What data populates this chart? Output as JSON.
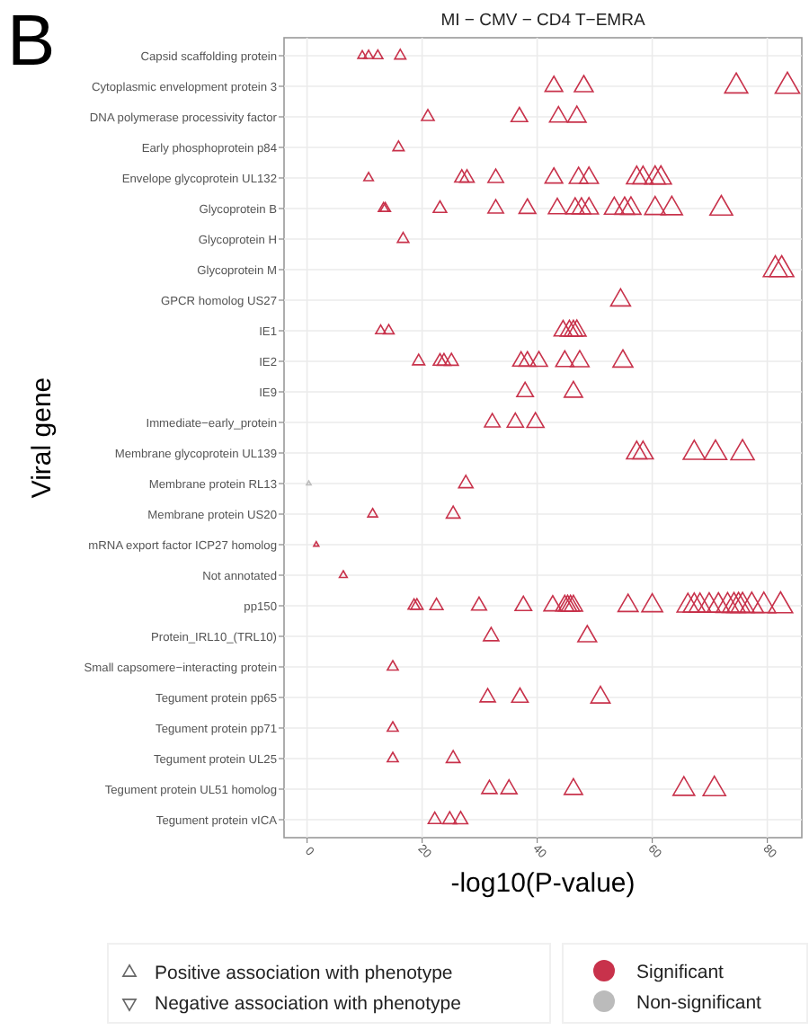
{
  "chart_data": {
    "type": "scatter",
    "orientation": "horizontal",
    "title": "MI − CMV − CD4 T−EMRA",
    "xlabel": "-log10(P-value)",
    "ylabel": "Viral gene",
    "categories": [
      "Capsid scaffolding protein",
      "Cytoplasmic envelopment protein 3",
      "DNA polymerase processivity factor",
      "Early phosphoprotein p84",
      "Envelope glycoprotein UL132",
      "Glycoprotein B",
      "Glycoprotein H",
      "Glycoprotein M",
      "GPCR homolog US27",
      "IE1",
      "IE2",
      "IE9",
      "Immediate−early_protein",
      "Membrane glycoprotein UL139",
      "Membrane protein RL13",
      "Membrane protein US20",
      "mRNA export factor ICP27 homolog",
      "Not annotated",
      "pp150",
      "Protein_IRL10_(TRL10)",
      "Small capsomere−interacting protein",
      "Tegument protein pp65",
      "Tegument protein pp71",
      "Tegument protein UL25",
      "Tegument protein UL51 homolog",
      "Tegument protein vICA"
    ],
    "xlim": [
      -4,
      86
    ],
    "xticks": [
      0,
      20,
      40,
      60,
      80
    ],
    "grid": true,
    "marker": "triangle",
    "legend": "bottom",
    "series": [
      {
        "name": "Significant",
        "color": "#c8324b",
        "x": [
          "Capsid scaffolding protein",
          "Capsid scaffolding protein",
          "Capsid scaffolding protein",
          "Capsid scaffolding protein",
          "Cytoplasmic envelopment protein 3",
          "Cytoplasmic envelopment protein 3",
          "Cytoplasmic envelopment protein 3",
          "Cytoplasmic envelopment protein 3",
          "DNA polymerase processivity factor",
          "DNA polymerase processivity factor",
          "DNA polymerase processivity factor",
          "DNA polymerase processivity factor",
          "Early phosphoprotein p84",
          "Envelope glycoprotein UL132",
          "Envelope glycoprotein UL132",
          "Envelope glycoprotein UL132",
          "Envelope glycoprotein UL132",
          "Envelope glycoprotein UL132",
          "Envelope glycoprotein UL132",
          "Envelope glycoprotein UL132",
          "Envelope glycoprotein UL132",
          "Envelope glycoprotein UL132",
          "Envelope glycoprotein UL132",
          "Envelope glycoprotein UL132",
          "Glycoprotein B",
          "Glycoprotein B",
          "Glycoprotein B",
          "Glycoprotein B",
          "Glycoprotein B",
          "Glycoprotein B",
          "Glycoprotein B",
          "Glycoprotein B",
          "Glycoprotein B",
          "Glycoprotein B",
          "Glycoprotein B",
          "Glycoprotein B",
          "Glycoprotein B",
          "Glycoprotein B",
          "Glycoprotein B",
          "Glycoprotein H",
          "Glycoprotein M",
          "Glycoprotein M",
          "GPCR homolog US27",
          "IE1",
          "IE1",
          "IE1",
          "IE1",
          "IE1",
          "IE1",
          "IE2",
          "IE2",
          "IE2",
          "IE2",
          "IE2",
          "IE2",
          "IE2",
          "IE2",
          "IE2",
          "IE2",
          "IE9",
          "IE9",
          "Immediate−early_protein",
          "Immediate−early_protein",
          "Immediate−early_protein",
          "Membrane glycoprotein UL139",
          "Membrane glycoprotein UL139",
          "Membrane glycoprotein UL139",
          "Membrane glycoprotein UL139",
          "Membrane glycoprotein UL139",
          "Membrane protein RL13",
          "Membrane protein US20",
          "Membrane protein US20",
          "mRNA export factor ICP27 homolog",
          "Not annotated",
          "pp150",
          "pp150",
          "pp150",
          "pp150",
          "pp150",
          "pp150",
          "pp150",
          "pp150",
          "pp150",
          "pp150",
          "pp150",
          "pp150",
          "pp150",
          "pp150",
          "pp150",
          "pp150",
          "pp150",
          "pp150",
          "pp150",
          "pp150",
          "pp150",
          "pp150",
          "pp150",
          "pp150",
          "Protein_IRL10_(TRL10)",
          "Protein_IRL10_(TRL10)",
          "Small capsomere−interacting protein",
          "Tegument protein pp65",
          "Tegument protein pp65",
          "Tegument protein pp65",
          "Tegument protein pp71",
          "Tegument protein UL25",
          "Tegument protein UL25",
          "Tegument protein UL51 homolog",
          "Tegument protein UL51 homolog",
          "Tegument protein UL51 homolog",
          "Tegument protein UL51 homolog",
          "Tegument protein UL51 homolog",
          "Tegument protein vICA",
          "Tegument protein vICA",
          "Tegument protein vICA"
        ],
        "values": [
          9.6,
          10.7,
          12.3,
          16.2,
          42.9,
          48.1,
          74.6,
          83.5,
          21,
          36.9,
          43.7,
          46.9,
          15.9,
          10.7,
          26.9,
          27.8,
          32.8,
          42.9,
          47.2,
          49,
          57.3,
          58.4,
          60.5,
          61.5,
          13.3,
          13.6,
          23.1,
          32.8,
          38.3,
          43.5,
          46.6,
          47.7,
          49,
          53.4,
          55.2,
          56.3,
          60.5,
          63.4,
          72,
          16.7,
          81.4,
          82.5,
          54.5,
          12.8,
          14.2,
          44.5,
          45.6,
          46.3,
          46.9,
          19.4,
          23.1,
          23.8,
          25.1,
          37.2,
          38.3,
          40.3,
          44.8,
          47.4,
          54.9,
          37.9,
          46.3,
          32.2,
          36.2,
          39.7,
          57.3,
          58.4,
          67.3,
          71,
          75.7,
          27.6,
          11.4,
          25.4,
          1.6,
          6.3,
          18.6,
          19.1,
          22.5,
          29.9,
          37.6,
          42.7,
          44.8,
          45.3,
          45.8,
          46.3,
          55.8,
          60,
          66.2,
          67.3,
          68.3,
          69.9,
          71.5,
          73.1,
          74.2,
          75,
          75.7,
          77.3,
          79.4,
          82.3,
          32,
          48.7,
          14.9,
          31.4,
          37,
          51,
          14.9,
          14.9,
          25.4,
          31.7,
          35.1,
          46.3,
          65.5,
          70.8,
          22.2,
          24.8,
          26.7
        ],
        "sizes": [
          0.11,
          0.13,
          0.15,
          0.19,
          0.51,
          0.58,
          0.89,
          1,
          0.25,
          0.44,
          0.52,
          0.56,
          0.19,
          0.13,
          0.32,
          0.33,
          0.39,
          0.51,
          0.57,
          0.59,
          0.69,
          0.7,
          0.72,
          0.74,
          0.16,
          0.16,
          0.28,
          0.39,
          0.46,
          0.52,
          0.56,
          0.57,
          0.59,
          0.64,
          0.66,
          0.67,
          0.72,
          0.76,
          0.86,
          0.2,
          0.97,
          0.99,
          0.65,
          0.15,
          0.17,
          0.53,
          0.55,
          0.55,
          0.56,
          0.23,
          0.28,
          0.29,
          0.3,
          0.45,
          0.46,
          0.48,
          0.54,
          0.57,
          0.66,
          0.45,
          0.55,
          0.39,
          0.43,
          0.48,
          0.69,
          0.7,
          0.81,
          0.85,
          0.91,
          0.33,
          0.14,
          0.3,
          0.02,
          0.08,
          0.22,
          0.23,
          0.27,
          0.36,
          0.45,
          0.51,
          0.54,
          0.54,
          0.55,
          0.55,
          0.67,
          0.72,
          0.79,
          0.81,
          0.82,
          0.84,
          0.86,
          0.88,
          0.89,
          0.9,
          0.91,
          0.93,
          0.95,
          0.99,
          0.38,
          0.58,
          0.18,
          0.38,
          0.44,
          0.61,
          0.18,
          0.18,
          0.3,
          0.38,
          0.42,
          0.55,
          0.78,
          0.85,
          0.27,
          0.3,
          0.32
        ]
      },
      {
        "name": "Non-significant",
        "color": "#bbbbbb",
        "x": [
          "Membrane protein RL13"
        ],
        "values": [
          0.3
        ],
        "sizes": [
          0.01
        ]
      }
    ],
    "annotations": [
      "B",
      "Positive association with phenotype",
      "Negative association with phenotype"
    ]
  }
}
